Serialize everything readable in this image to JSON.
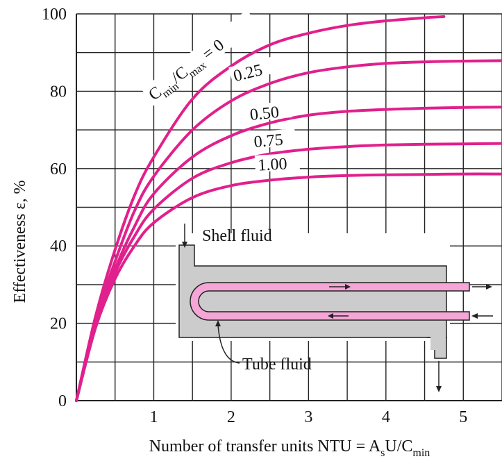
{
  "chart_data": {
    "type": "line",
    "xlabel": "Number of transfer units NTU = A",
    "xlabel_sub_s": "s",
    "xlabel_mid": "U/C",
    "xlabel_sub_min": "min",
    "ylabel": "Effectiveness ε, %",
    "xlim": [
      0,
      5.5
    ],
    "ylim": [
      0,
      100
    ],
    "x_ticks": [
      "1",
      "2",
      "3",
      "4",
      "5"
    ],
    "y_ticks": [
      "0",
      "20",
      "40",
      "60",
      "80",
      "100"
    ],
    "grid": true,
    "grid_minor_x": 0.5,
    "grid_minor_y": 10,
    "line_color": "#e0208c",
    "curve_label_prefix": "C",
    "curve_label_sub1": "min",
    "curve_label_mid": "/C",
    "curve_label_sub2": "max",
    "curve_label_suffix": " = 0",
    "series": [
      {
        "name": "0",
        "x": [
          0,
          0.25,
          0.5,
          0.75,
          1,
          1.5,
          2,
          2.5,
          3,
          3.5,
          4,
          4.5,
          4.75
        ],
        "y": [
          0,
          22,
          39,
          53,
          63,
          78,
          86.5,
          92,
          95,
          97,
          98.2,
          99,
          99.3
        ]
      },
      {
        "name": "0.25",
        "x": [
          0,
          0.25,
          0.5,
          0.75,
          1,
          1.5,
          2,
          2.5,
          3,
          3.5,
          4,
          4.5,
          5,
          5.5
        ],
        "y": [
          0,
          21,
          36,
          49,
          58,
          70,
          77.5,
          82,
          84.8,
          86.3,
          87.2,
          87.6,
          87.8,
          87.9
        ]
      },
      {
        "name": "0.50",
        "x": [
          0,
          0.25,
          0.5,
          0.75,
          1,
          1.5,
          2,
          2.5,
          3,
          3.5,
          4,
          4.5,
          5,
          5.5
        ],
        "y": [
          0,
          20,
          34,
          45,
          53.5,
          63,
          68.5,
          71.8,
          73.8,
          74.8,
          75.3,
          75.6,
          75.8,
          75.9
        ]
      },
      {
        "name": "0.75",
        "x": [
          0,
          0.25,
          0.5,
          0.75,
          1,
          1.5,
          2,
          2.5,
          3,
          3.5,
          4,
          4.5,
          5,
          5.5
        ],
        "y": [
          0,
          19.5,
          33,
          42.5,
          49.5,
          57.5,
          61.5,
          63.8,
          65,
          65.7,
          66.1,
          66.3,
          66.4,
          66.5
        ]
      },
      {
        "name": "1.00",
        "x": [
          0,
          0.25,
          0.5,
          0.75,
          1,
          1.5,
          2,
          2.5,
          3,
          3.5,
          4,
          4.5,
          5,
          5.5
        ],
        "y": [
          0,
          19,
          31.5,
          40,
          46,
          52.5,
          55.6,
          57,
          57.8,
          58.2,
          58.4,
          58.5,
          58.6,
          58.6
        ]
      }
    ],
    "diagram": {
      "shell_label": "Shell fluid",
      "tube_label": "Tube fluid",
      "shell_color": "#cccccc",
      "tube_color": "#f5a6d6"
    }
  }
}
